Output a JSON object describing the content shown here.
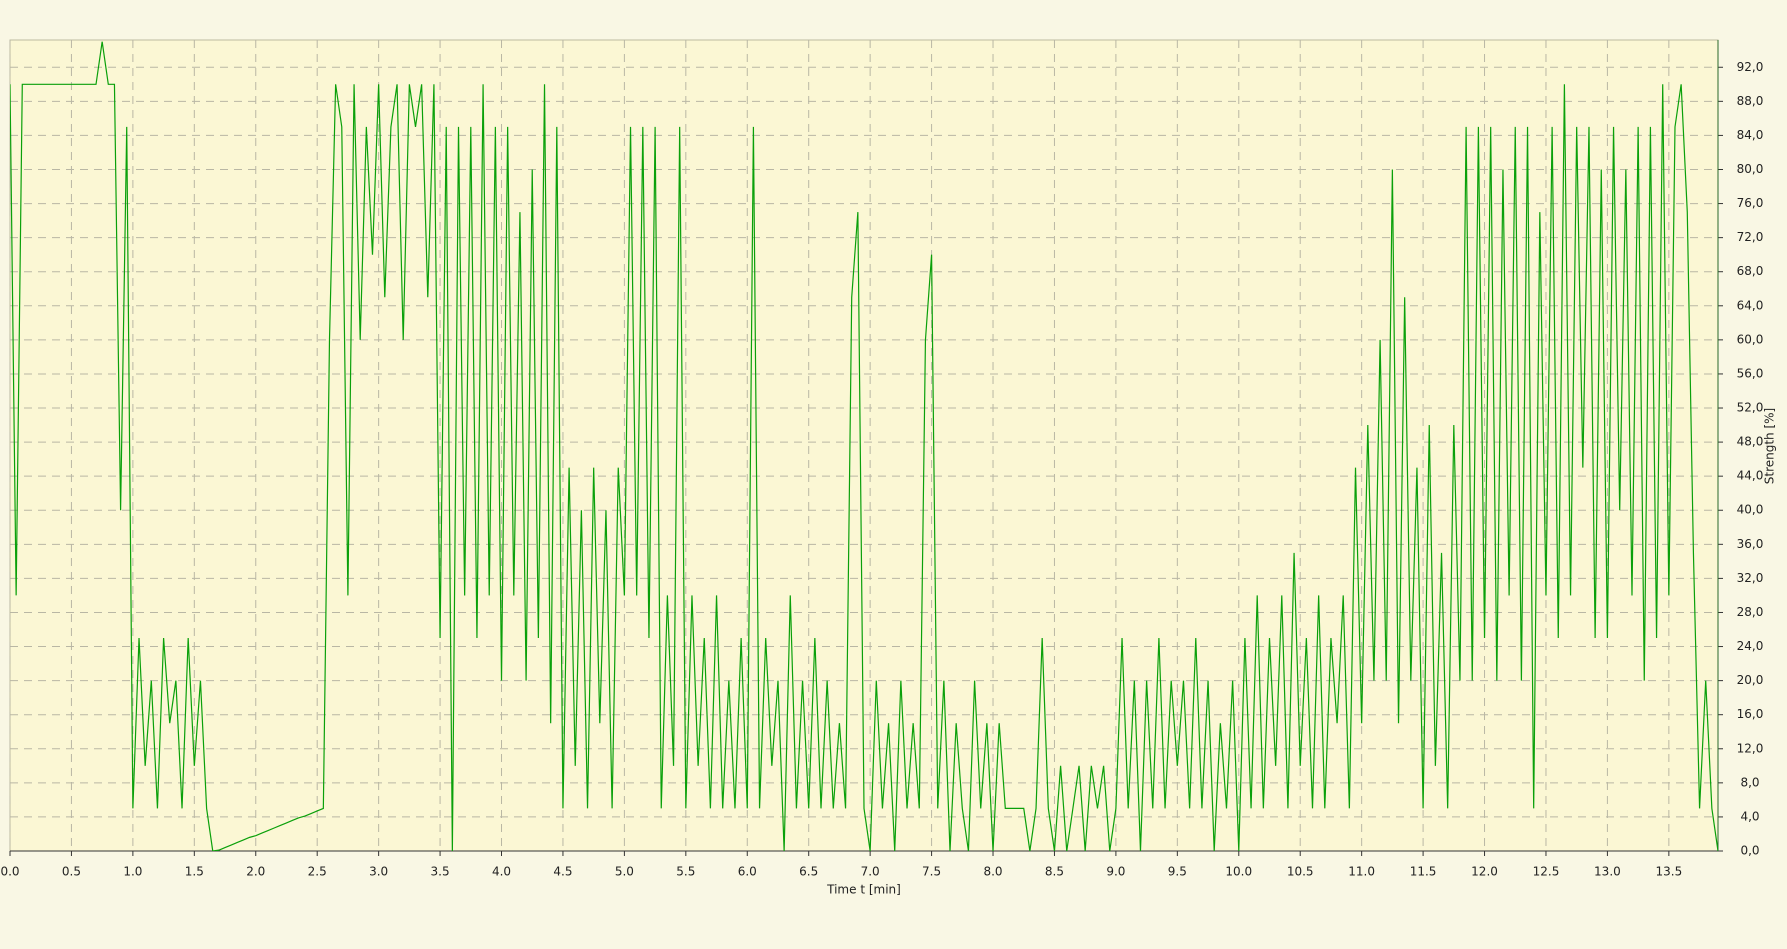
{
  "chart_data": {
    "type": "line",
    "x_label": "Time  t  [min]",
    "y_label": "Strength  [%]",
    "color": "#0aa00a",
    "grid": true,
    "y_axis_side": "right",
    "xlim": [
      0,
      13.9
    ],
    "ylim": [
      0,
      95.2
    ],
    "xticks": [
      {
        "value": 0,
        "label": "0.0"
      },
      {
        "value": 0.5,
        "label": "0.5"
      },
      {
        "value": 1,
        "label": "1.0"
      },
      {
        "value": 1.5,
        "label": "1.5"
      },
      {
        "value": 2,
        "label": "2.0"
      },
      {
        "value": 2.5,
        "label": "2.5"
      },
      {
        "value": 3,
        "label": "3.0"
      },
      {
        "value": 3.5,
        "label": "3.5"
      },
      {
        "value": 4,
        "label": "4.0"
      },
      {
        "value": 4.5,
        "label": "4.5"
      },
      {
        "value": 5,
        "label": "5.0"
      },
      {
        "value": 5.5,
        "label": "5.5"
      },
      {
        "value": 6,
        "label": "6.0"
      },
      {
        "value": 6.5,
        "label": "6.5"
      },
      {
        "value": 7,
        "label": "7.0"
      },
      {
        "value": 7.5,
        "label": "7.5"
      },
      {
        "value": 8,
        "label": "8.0"
      },
      {
        "value": 8.5,
        "label": "8.5"
      },
      {
        "value": 9,
        "label": "9.0"
      },
      {
        "value": 9.5,
        "label": "9.5"
      },
      {
        "value": 10,
        "label": "10.0"
      },
      {
        "value": 10.5,
        "label": "10.5"
      },
      {
        "value": 11,
        "label": "11.0"
      },
      {
        "value": 11.5,
        "label": "11.5"
      },
      {
        "value": 12,
        "label": "12.0"
      },
      {
        "value": 12.5,
        "label": "12.5"
      },
      {
        "value": 13,
        "label": "13.0"
      },
      {
        "value": 13.5,
        "label": "13.5"
      }
    ],
    "yticks": [
      {
        "value": 0,
        "label": "0,0"
      },
      {
        "value": 4,
        "label": "4,0"
      },
      {
        "value": 8,
        "label": "8,0"
      },
      {
        "value": 12,
        "label": "12,0"
      },
      {
        "value": 16,
        "label": "16,0"
      },
      {
        "value": 20,
        "label": "20,0"
      },
      {
        "value": 24,
        "label": "24,0"
      },
      {
        "value": 28,
        "label": "28,0"
      },
      {
        "value": 32,
        "label": "32,0"
      },
      {
        "value": 36,
        "label": "36,0"
      },
      {
        "value": 40,
        "label": "40,0"
      },
      {
        "value": 44,
        "label": "44,0"
      },
      {
        "value": 48,
        "label": "48,0"
      },
      {
        "value": 52,
        "label": "52,0"
      },
      {
        "value": 56,
        "label": "56,0"
      },
      {
        "value": 60,
        "label": "60,0"
      },
      {
        "value": 64,
        "label": "64,0"
      },
      {
        "value": 68,
        "label": "68,0"
      },
      {
        "value": 72,
        "label": "72,0"
      },
      {
        "value": 76,
        "label": "76,0"
      },
      {
        "value": 80,
        "label": "80,0"
      },
      {
        "value": 84,
        "label": "84,0"
      },
      {
        "value": 88,
        "label": "88,0"
      },
      {
        "value": 92,
        "label": "92,0"
      }
    ],
    "x": [
      0,
      0.05,
      0.1,
      0.15,
      0.2,
      0.25,
      0.3,
      0.35,
      0.4,
      0.45,
      0.5,
      0.55,
      0.6,
      0.65,
      0.7,
      0.75,
      0.8,
      0.85,
      0.9,
      0.95,
      1,
      1.05,
      1.1,
      1.15,
      1.2,
      1.25,
      1.3,
      1.35,
      1.4,
      1.45,
      1.5,
      1.55,
      1.6,
      1.65,
      1.7,
      1.75,
      1.8,
      1.85,
      1.9,
      1.95,
      2,
      2.05,
      2.1,
      2.15,
      2.2,
      2.25,
      2.3,
      2.35,
      2.4,
      2.45,
      2.5,
      2.55,
      2.6,
      2.65,
      2.7,
      2.75,
      2.8,
      2.85,
      2.9,
      2.95,
      3,
      3.05,
      3.1,
      3.15,
      3.2,
      3.25,
      3.3,
      3.35,
      3.4,
      3.45,
      3.5,
      3.55,
      3.6,
      3.65,
      3.7,
      3.75,
      3.8,
      3.85,
      3.9,
      3.95,
      4,
      4.05,
      4.1,
      4.15,
      4.2,
      4.25,
      4.3,
      4.35,
      4.4,
      4.45,
      4.5,
      4.55,
      4.6,
      4.65,
      4.7,
      4.75,
      4.8,
      4.85,
      4.9,
      4.95,
      5,
      5.05,
      5.1,
      5.15,
      5.2,
      5.25,
      5.3,
      5.35,
      5.4,
      5.45,
      5.5,
      5.55,
      5.6,
      5.65,
      5.7,
      5.75,
      5.8,
      5.85,
      5.9,
      5.95,
      6,
      6.05,
      6.1,
      6.15,
      6.2,
      6.25,
      6.3,
      6.35,
      6.4,
      6.45,
      6.5,
      6.55,
      6.6,
      6.65,
      6.7,
      6.75,
      6.8,
      6.85,
      6.9,
      6.95,
      7,
      7.05,
      7.1,
      7.15,
      7.2,
      7.25,
      7.3,
      7.35,
      7.4,
      7.45,
      7.5,
      7.55,
      7.6,
      7.65,
      7.7,
      7.75,
      7.8,
      7.85,
      7.9,
      7.95,
      8,
      8.05,
      8.1,
      8.15,
      8.2,
      8.25,
      8.3,
      8.35,
      8.4,
      8.45,
      8.5,
      8.55,
      8.6,
      8.65,
      8.7,
      8.75,
      8.8,
      8.85,
      8.9,
      8.95,
      9,
      9.05,
      9.1,
      9.15,
      9.2,
      9.25,
      9.3,
      9.35,
      9.4,
      9.45,
      9.5,
      9.55,
      9.6,
      9.65,
      9.7,
      9.75,
      9.8,
      9.85,
      9.9,
      9.95,
      10,
      10.05,
      10.1,
      10.15,
      10.2,
      10.25,
      10.3,
      10.35,
      10.4,
      10.45,
      10.5,
      10.55,
      10.6,
      10.65,
      10.7,
      10.75,
      10.8,
      10.85,
      10.9,
      10.95,
      11,
      11.05,
      11.1,
      11.15,
      11.2,
      11.25,
      11.3,
      11.35,
      11.4,
      11.45,
      11.5,
      11.55,
      11.6,
      11.65,
      11.7,
      11.75,
      11.8,
      11.85,
      11.9,
      11.95,
      12,
      12.05,
      12.1,
      12.15,
      12.2,
      12.25,
      12.3,
      12.35,
      12.4,
      12.45,
      12.5,
      12.55,
      12.6,
      12.65,
      12.7,
      12.75,
      12.8,
      12.85,
      12.9,
      12.95,
      13,
      13.05,
      13.1,
      13.15,
      13.2,
      13.25,
      13.3,
      13.35,
      13.4,
      13.45,
      13.5,
      13.55,
      13.6,
      13.65,
      13.7,
      13.75,
      13.8,
      13.85,
      13.9
    ],
    "values": [
      90,
      30,
      90,
      90,
      90,
      90,
      90,
      90,
      90,
      90,
      90,
      90,
      90,
      90,
      90,
      95,
      90,
      90,
      40,
      85,
      5,
      25,
      10,
      20,
      5,
      25,
      15,
      20,
      5,
      25,
      10,
      20,
      5,
      0,
      0.1,
      0.4,
      0.7,
      1.0,
      1.3,
      1.6,
      1.8,
      2.1,
      2.4,
      2.7,
      3.0,
      3.3,
      3.6,
      3.9,
      4.1,
      4.4,
      4.7,
      5,
      60,
      90,
      85,
      30,
      90,
      60,
      85,
      70,
      90,
      65,
      85,
      90,
      60,
      90,
      85,
      90,
      65,
      90,
      25,
      85,
      0,
      85,
      30,
      85,
      25,
      90,
      30,
      85,
      20,
      85,
      30,
      75,
      20,
      80,
      25,
      90,
      15,
      85,
      5,
      45,
      10,
      40,
      5,
      45,
      15,
      40,
      5,
      45,
      30,
      85,
      30,
      85,
      25,
      85,
      5,
      30,
      10,
      85,
      5,
      30,
      10,
      25,
      5,
      30,
      5,
      20,
      5,
      25,
      5,
      85,
      5,
      25,
      10,
      20,
      0,
      30,
      5,
      20,
      5,
      25,
      5,
      20,
      5,
      15,
      5,
      65,
      75,
      5,
      0,
      20,
      5,
      15,
      0,
      20,
      5,
      15,
      5,
      60,
      70,
      5,
      20,
      0,
      15,
      5,
      0,
      20,
      5,
      15,
      0,
      15,
      5,
      5,
      5,
      5,
      0,
      5,
      25,
      5,
      0,
      10,
      0,
      5,
      10,
      0,
      10,
      5,
      10,
      0,
      5,
      25,
      5,
      20,
      0,
      20,
      5,
      25,
      5,
      20,
      10,
      20,
      5,
      25,
      5,
      20,
      0,
      15,
      5,
      20,
      0,
      25,
      5,
      30,
      5,
      25,
      10,
      30,
      5,
      35,
      10,
      25,
      5,
      30,
      5,
      25,
      15,
      30,
      5,
      45,
      15,
      50,
      20,
      60,
      20,
      80,
      15,
      65,
      20,
      45,
      5,
      50,
      10,
      35,
      5,
      50,
      20,
      85,
      20,
      85,
      25,
      85,
      20,
      80,
      30,
      85,
      20,
      85,
      5,
      75,
      30,
      85,
      25,
      90,
      30,
      85,
      45,
      85,
      25,
      80,
      25,
      85,
      40,
      80,
      30,
      85,
      20,
      85,
      25,
      90,
      30,
      85,
      90,
      75,
      35,
      5,
      20,
      5,
      0
    ]
  }
}
